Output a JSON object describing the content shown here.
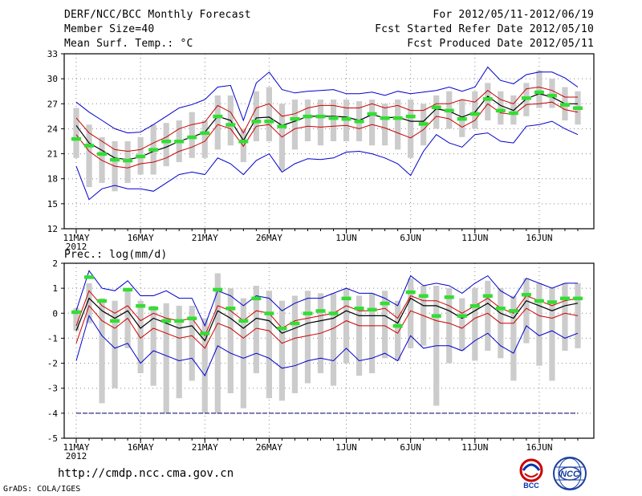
{
  "header": {
    "title": "DERF/NCC/BCC Monthly Forecast",
    "member_size": "Member Size=40",
    "variable1": "Mean Surf. Temp.: °C",
    "period": "For 2012/05/11-2012/06/19",
    "started": "Fcst Started Refer Date 2012/05/10",
    "produced": "Fcst Produced Date 2012/05/11"
  },
  "panel2_label": "Prec.: log(mm/d)",
  "footer": {
    "url": "http://cmdp.ncc.cma.gov.cn",
    "credit": "GrADS: COLA/IGES",
    "logo_bcc_text": "BCC",
    "logo_ncc_text": "NCC"
  },
  "colors": {
    "envelope": "#0000cc",
    "spread": "#cc0000",
    "mean": "#000000",
    "obs": "#33dd33",
    "box": "#cccccc"
  },
  "chart_data": [
    {
      "type": "line",
      "title": "Mean Surf. Temp.: °C",
      "x_tick_labels": [
        "11MAY",
        "16MAY",
        "21MAY",
        "26MAY",
        "1JUN",
        "6JUN",
        "11JUN",
        "16JUN"
      ],
      "x_tick_days": [
        1,
        6,
        11,
        16,
        22,
        27,
        32,
        37
      ],
      "year_label": "2012",
      "xlim": [
        1,
        40
      ],
      "ylim": [
        12,
        33
      ],
      "y_ticks": [
        12,
        15,
        18,
        21,
        24,
        27,
        30,
        33
      ],
      "grid": true,
      "series": [
        {
          "name": "max",
          "values": [
            27.2,
            26,
            25,
            24,
            23.5,
            23.6,
            24.5,
            25.5,
            26.5,
            26.9,
            27.5,
            29.0,
            29.2,
            25.0,
            29.5,
            30.8,
            28.7,
            28.3,
            28.5,
            28.6,
            28.7,
            28.2,
            28.2,
            28.4,
            28.0,
            28.5,
            28.2,
            28.4,
            28.6,
            29.0,
            28.5,
            29.0,
            31.4,
            29.8,
            29.4,
            30.5,
            30.8,
            30.8,
            30.1,
            29.0
          ]
        },
        {
          "name": "plus_sigma",
          "values": [
            25.3,
            23.5,
            22.5,
            21.5,
            21.3,
            21.5,
            22.3,
            23.0,
            24.0,
            24.5,
            24.8,
            26.8,
            26.0,
            23.5,
            26.5,
            27.0,
            25.5,
            25.8,
            26.5,
            26.8,
            26.8,
            26.5,
            26.5,
            27.0,
            26.5,
            26.8,
            26.2,
            26.2,
            27.0,
            27.0,
            27.5,
            27.2,
            28.6,
            27.5,
            27.0,
            28.8,
            29.0,
            28.6,
            27.8,
            27.8
          ]
        },
        {
          "name": "mean",
          "values": [
            24.4,
            22.3,
            21.4,
            20.5,
            20.3,
            20.6,
            21.3,
            21.8,
            22.5,
            23.0,
            23.6,
            25.5,
            25.0,
            22.6,
            25.3,
            25.4,
            24.4,
            24.9,
            25.5,
            25.5,
            25.5,
            25.4,
            25.0,
            25.7,
            25.3,
            25.4,
            24.9,
            24.9,
            26.4,
            26.1,
            25.4,
            26.0,
            27.9,
            26.8,
            26.2,
            27.6,
            28.2,
            27.8,
            27.0,
            27.0
          ]
        },
        {
          "name": "minus_sigma",
          "values": [
            23.3,
            21.3,
            20.2,
            19.5,
            19.3,
            19.8,
            20.0,
            20.5,
            21.3,
            21.8,
            22.5,
            24.5,
            24.0,
            21.9,
            24.3,
            24.5,
            23.0,
            24.0,
            24.3,
            24.2,
            24.3,
            24.4,
            24.0,
            24.5,
            24.1,
            23.5,
            22.9,
            23.9,
            25.5,
            25.2,
            24.2,
            25.0,
            27.0,
            25.9,
            25.7,
            26.9,
            27.0,
            27.2,
            26.3,
            26.0
          ]
        },
        {
          "name": "min",
          "values": [
            19.5,
            15.5,
            16.8,
            17.2,
            16.8,
            16.8,
            16.5,
            17.5,
            18.5,
            18.8,
            18.5,
            20.5,
            19.8,
            18.5,
            20.2,
            21.0,
            18.8,
            19.8,
            20.4,
            20.3,
            20.5,
            21.2,
            21.3,
            21.0,
            20.5,
            19.8,
            18.4,
            21.3,
            23.3,
            22.3,
            21.8,
            23.3,
            23.5,
            22.5,
            22.3,
            24.3,
            24.5,
            24.9,
            24.0,
            23.3
          ]
        },
        {
          "name": "observed",
          "values": [
            22.8,
            22.0,
            21.0,
            20.3,
            20.2,
            20.7,
            21.5,
            22.5,
            22.5,
            23.0,
            23.5,
            25.5,
            24.5,
            22.5,
            24.9,
            24.9,
            24.3,
            25.2,
            25.5,
            25.5,
            25.3,
            25.2,
            24.9,
            25.8,
            25.3,
            25.3,
            25.5,
            24.6,
            26.6,
            26.2,
            25.2,
            25.8,
            27.6,
            26.2,
            25.9,
            27.7,
            28.4,
            28.0,
            26.9,
            26.5
          ]
        },
        {
          "name": "box_high",
          "values": [
            26.5,
            24.5,
            23.0,
            22.5,
            22.5,
            23.0,
            24.5,
            24.7,
            25.0,
            26.0,
            25.0,
            28.0,
            28.0,
            24.0,
            28.5,
            29.0,
            27.0,
            27.5,
            27.5,
            27.5,
            27.5,
            27.5,
            27.3,
            27.5,
            27.0,
            27.5,
            27.5,
            27.0,
            28.0,
            28.5,
            27.5,
            28.5,
            29.5,
            28.5,
            28.0,
            29.5,
            31.0,
            30.0,
            29.0,
            28.5
          ]
        },
        {
          "name": "box_low",
          "values": [
            20.5,
            17.0,
            17.5,
            16.5,
            17.5,
            18.5,
            18.5,
            19.5,
            20.0,
            20.5,
            20.5,
            21.5,
            22.0,
            20.0,
            22.5,
            22.5,
            19.0,
            21.5,
            22.5,
            22.0,
            22.5,
            22.5,
            22.5,
            22.0,
            22.0,
            21.5,
            20.5,
            22.0,
            24.0,
            24.0,
            23.0,
            24.0,
            25.0,
            24.5,
            24.5,
            25.5,
            26.5,
            26.5,
            25.0,
            24.5
          ]
        }
      ]
    },
    {
      "type": "line",
      "title": "Prec.: log(mm/d)",
      "x_tick_labels": [
        "11MAY",
        "16MAY",
        "21MAY",
        "26MAY",
        "1JUN",
        "6JUN",
        "11JUN",
        "16JUN"
      ],
      "x_tick_days": [
        1,
        6,
        11,
        16,
        22,
        27,
        32,
        37
      ],
      "year_label": "2012",
      "xlim": [
        1,
        40
      ],
      "ylim": [
        -5,
        2
      ],
      "y_ticks": [
        -5,
        -4,
        -3,
        -2,
        -1,
        0,
        1,
        2
      ],
      "grid": true,
      "reference_line": -4,
      "series": [
        {
          "name": "max",
          "values": [
            0.1,
            1.7,
            1.0,
            0.9,
            1.3,
            0.7,
            0.7,
            0.9,
            0.6,
            0.6,
            -0.5,
            0.9,
            0.7,
            0.3,
            0.7,
            0.6,
            0.1,
            0.4,
            0.6,
            0.6,
            0.8,
            1.0,
            0.8,
            0.8,
            0.6,
            0.3,
            1.5,
            1.1,
            1.2,
            1.1,
            0.8,
            1.2,
            1.5,
            0.9,
            0.6,
            1.4,
            1.2,
            1.0,
            1.2,
            1.2
          ]
        },
        {
          "name": "plus_sigma",
          "values": [
            -0.5,
            0.9,
            0.3,
            0.0,
            0.3,
            -0.3,
            0.0,
            -0.2,
            -0.3,
            -0.2,
            -0.9,
            0.3,
            0.1,
            -0.3,
            0.1,
            0.0,
            -0.6,
            -0.3,
            -0.2,
            -0.1,
            0.0,
            0.3,
            0.1,
            0.1,
            0.2,
            -0.2,
            0.7,
            0.5,
            0.5,
            0.3,
            0.0,
            0.3,
            0.6,
            0.2,
            0.0,
            0.7,
            0.5,
            0.3,
            0.5,
            0.6
          ]
        },
        {
          "name": "mean",
          "values": [
            -0.7,
            0.6,
            0.1,
            -0.2,
            0.1,
            -0.6,
            -0.2,
            -0.4,
            -0.6,
            -0.5,
            -1.1,
            0.1,
            -0.2,
            -0.6,
            -0.2,
            -0.3,
            -0.8,
            -0.6,
            -0.4,
            -0.3,
            -0.2,
            0.1,
            -0.1,
            -0.1,
            -0.1,
            -0.4,
            0.6,
            0.3,
            0.3,
            0.1,
            -0.2,
            0.1,
            0.4,
            0.0,
            -0.2,
            0.5,
            0.3,
            0.1,
            0.3,
            0.4
          ]
        },
        {
          "name": "minus_sigma",
          "values": [
            -1.2,
            0.3,
            -0.3,
            -0.6,
            -0.2,
            -1.0,
            -0.6,
            -0.8,
            -1.0,
            -0.9,
            -1.4,
            -0.4,
            -0.6,
            -1.0,
            -0.6,
            -0.7,
            -1.2,
            -1.0,
            -0.9,
            -0.8,
            -0.6,
            -0.3,
            -0.5,
            -0.5,
            -0.5,
            -0.8,
            0.1,
            -0.1,
            -0.3,
            -0.4,
            -0.6,
            -0.2,
            0.0,
            -0.4,
            -0.4,
            0.2,
            -0.1,
            -0.2,
            0.0,
            -0.1
          ]
        },
        {
          "name": "min",
          "values": [
            -1.9,
            -0.1,
            -0.9,
            -1.4,
            -1.2,
            -2.0,
            -1.5,
            -1.7,
            -1.9,
            -1.8,
            -2.5,
            -1.3,
            -1.6,
            -1.8,
            -1.6,
            -1.8,
            -2.2,
            -2.1,
            -1.9,
            -1.8,
            -1.9,
            -1.4,
            -1.9,
            -1.8,
            -1.6,
            -1.9,
            -0.9,
            -1.4,
            -1.3,
            -1.3,
            -1.5,
            -1.1,
            -0.8,
            -1.3,
            -1.6,
            -0.5,
            -0.9,
            -0.7,
            -1.0,
            -0.8
          ]
        },
        {
          "name": "observed",
          "values": [
            0.05,
            1.45,
            0.5,
            -0.3,
            0.95,
            0.3,
            0.2,
            -0.3,
            -0.3,
            -0.2,
            -0.8,
            0.95,
            0.2,
            -0.3,
            0.6,
            0.0,
            -0.6,
            -0.4,
            0.0,
            0.1,
            0.0,
            0.6,
            0.2,
            0.15,
            0.4,
            -0.5,
            0.85,
            0.7,
            -0.1,
            0.65,
            -0.1,
            0.3,
            0.7,
            0.2,
            0.1,
            0.75,
            0.5,
            0.45,
            0.6,
            0.6
          ]
        },
        {
          "name": "box_high",
          "values": [
            0.2,
            1.2,
            0.6,
            0.5,
            1.0,
            0.5,
            0.3,
            0.4,
            0.3,
            0.3,
            -0.2,
            1.6,
            1.0,
            0.6,
            1.1,
            0.9,
            0.5,
            0.7,
            0.9,
            0.8,
            0.8,
            1.0,
            0.7,
            0.8,
            0.9,
            0.5,
            1.4,
            1.1,
            1.1,
            1.0,
            0.6,
            1.0,
            1.3,
            1.0,
            0.7,
            1.4,
            1.2,
            1.0,
            1.2,
            1.2
          ]
        },
        {
          "name": "box_low",
          "values": [
            -0.7,
            -0.4,
            -3.6,
            -3.0,
            -1.4,
            -2.4,
            -2.9,
            -4.0,
            -3.4,
            -2.7,
            -4.0,
            -4.0,
            -3.2,
            -3.8,
            -2.4,
            -3.4,
            -3.5,
            -3.2,
            -2.8,
            -2.4,
            -2.9,
            -2.0,
            -2.5,
            -2.4,
            -1.8,
            -1.9,
            -1.4,
            -1.3,
            -3.7,
            -2.0,
            -1.5,
            -1.9,
            -1.5,
            -1.8,
            -2.7,
            -1.2,
            -2.1,
            -2.7,
            -1.5,
            -1.4
          ]
        }
      ]
    }
  ]
}
